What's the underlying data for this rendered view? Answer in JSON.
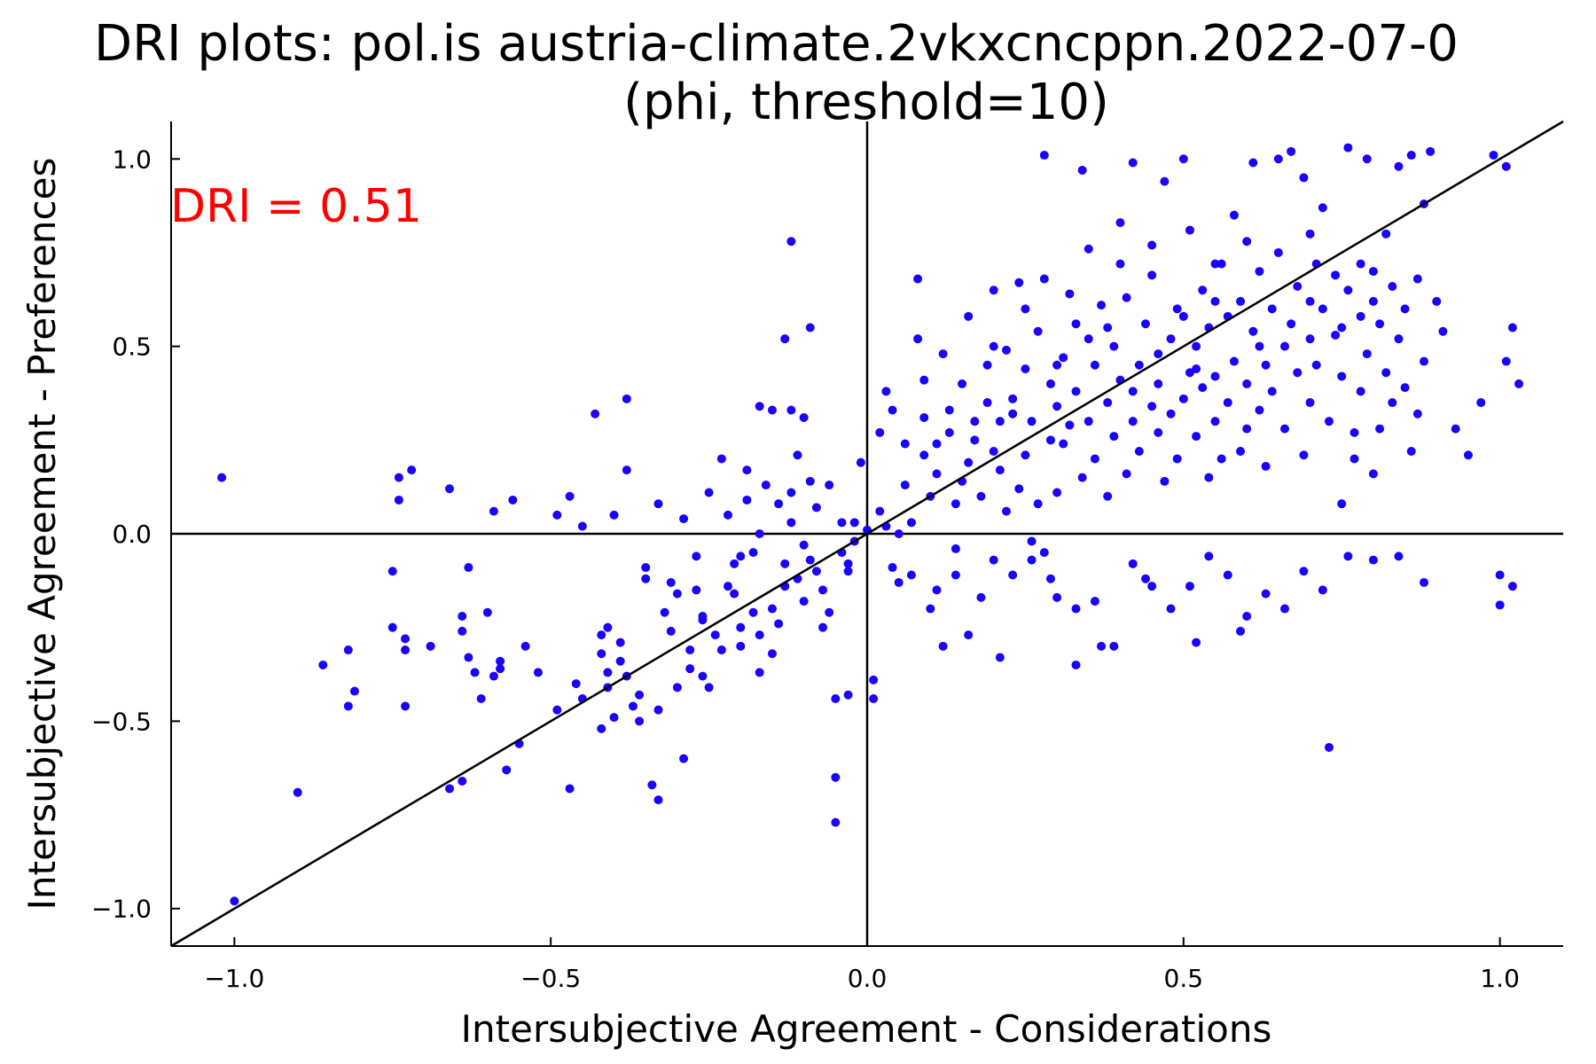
{
  "chart_data": {
    "type": "scatter",
    "title": "DRI plots: pol.is austria-climate.2vkxcncppn.2022-07-0",
    "subtitle": "(phi, threshold=10)",
    "xlabel": "Intersubjective Agreement - Considerations",
    "ylabel": "Intersubjective Agreement - Preferences",
    "xlim": [
      -1.1,
      1.1
    ],
    "ylim": [
      -1.1,
      1.1
    ],
    "xticks": [
      -1.0,
      -0.5,
      0.0,
      0.5,
      1.0
    ],
    "yticks": [
      -1.0,
      -0.5,
      0.0,
      0.5,
      1.0
    ],
    "xtick_labels": [
      "−1.0",
      "−0.5",
      "0.0",
      "0.5",
      "1.0"
    ],
    "ytick_labels": [
      "−1.0",
      "−0.5",
      "0.0",
      "0.5",
      "1.0"
    ],
    "grid": false,
    "legend": "none",
    "reference_lines": [
      "y = x",
      "x = 0",
      "y = 0"
    ],
    "annotation": {
      "text": "DRI = 0.51",
      "color": "#ff0000",
      "position": "top-left"
    },
    "marker_color": "#1a00ff",
    "line_color": "#000000",
    "points": [
      [
        -1.02,
        0.15
      ],
      [
        -1.0,
        -0.98
      ],
      [
        -0.9,
        -0.69
      ],
      [
        -0.86,
        -0.35
      ],
      [
        -0.82,
        -0.31
      ],
      [
        -0.81,
        -0.42
      ],
      [
        -0.82,
        -0.46
      ],
      [
        -0.75,
        -0.1
      ],
      [
        -0.75,
        -0.25
      ],
      [
        -0.74,
        0.09
      ],
      [
        -0.74,
        0.15
      ],
      [
        -0.73,
        -0.28
      ],
      [
        -0.73,
        -0.31
      ],
      [
        -0.73,
        -0.46
      ],
      [
        -0.72,
        0.17
      ],
      [
        -0.69,
        -0.3
      ],
      [
        -0.66,
        -0.68
      ],
      [
        -0.66,
        0.12
      ],
      [
        -0.64,
        -0.66
      ],
      [
        -0.64,
        -0.22
      ],
      [
        -0.64,
        -0.26
      ],
      [
        -0.63,
        -0.09
      ],
      [
        -0.63,
        -0.33
      ],
      [
        -0.62,
        -0.37
      ],
      [
        -0.61,
        -0.44
      ],
      [
        -0.6,
        -0.21
      ],
      [
        -0.59,
        -0.38
      ],
      [
        -0.59,
        0.06
      ],
      [
        -0.58,
        -0.34
      ],
      [
        -0.58,
        -0.36
      ],
      [
        -0.57,
        -0.63
      ],
      [
        -0.56,
        0.09
      ],
      [
        -0.55,
        -0.56
      ],
      [
        -0.54,
        -0.3
      ],
      [
        -0.52,
        -0.37
      ],
      [
        -0.49,
        -0.47
      ],
      [
        -0.47,
        -0.68
      ],
      [
        -0.46,
        -0.4
      ],
      [
        -0.45,
        -0.44
      ],
      [
        -0.43,
        0.32
      ],
      [
        -0.42,
        -0.27
      ],
      [
        -0.42,
        -0.32
      ],
      [
        -0.41,
        -0.37
      ],
      [
        -0.41,
        -0.41
      ],
      [
        -0.41,
        -0.25
      ],
      [
        -0.4,
        -0.49
      ],
      [
        -0.39,
        -0.29
      ],
      [
        -0.39,
        -0.34
      ],
      [
        -0.38,
        -0.38
      ],
      [
        -0.38,
        0.36
      ],
      [
        -0.38,
        0.17
      ],
      [
        -0.37,
        -0.46
      ],
      [
        -0.36,
        -0.43
      ],
      [
        -0.35,
        -0.09
      ],
      [
        -0.35,
        -0.12
      ],
      [
        -0.34,
        -0.67
      ],
      [
        -0.33,
        -0.71
      ],
      [
        -0.33,
        -0.47
      ],
      [
        -0.32,
        -0.21
      ],
      [
        -0.31,
        -0.26
      ],
      [
        -0.31,
        -0.13
      ],
      [
        -0.3,
        -0.16
      ],
      [
        -0.29,
        -0.6
      ],
      [
        -0.28,
        -0.31
      ],
      [
        -0.28,
        -0.36
      ],
      [
        -0.27,
        -0.15
      ],
      [
        -0.27,
        -0.06
      ],
      [
        -0.26,
        -0.22
      ],
      [
        -0.26,
        -0.38
      ],
      [
        -0.25,
        -0.41
      ],
      [
        -0.24,
        -0.27
      ],
      [
        -0.23,
        -0.31
      ],
      [
        -0.22,
        0.05
      ],
      [
        -0.21,
        -0.08
      ],
      [
        -0.21,
        -0.16
      ],
      [
        -0.2,
        -0.25
      ],
      [
        -0.2,
        -0.3
      ],
      [
        -0.19,
        0.17
      ],
      [
        -0.19,
        0.09
      ],
      [
        -0.18,
        -0.05
      ],
      [
        -0.18,
        -0.21
      ],
      [
        -0.17,
        -0.37
      ],
      [
        -0.17,
        0.0
      ],
      [
        -0.16,
        0.13
      ],
      [
        -0.15,
        -0.2
      ],
      [
        -0.15,
        -0.32
      ],
      [
        -0.14,
        0.08
      ],
      [
        -0.13,
        -0.08
      ],
      [
        -0.13,
        -0.14
      ],
      [
        -0.12,
        0.78
      ],
      [
        -0.12,
        0.03
      ],
      [
        -0.11,
        -0.12
      ],
      [
        -0.11,
        0.21
      ],
      [
        -0.1,
        -0.03
      ],
      [
        -0.1,
        -0.18
      ],
      [
        -0.09,
        0.55
      ],
      [
        -0.09,
        -0.07
      ],
      [
        -0.08,
        0.07
      ],
      [
        -0.08,
        -0.1
      ],
      [
        -0.07,
        -0.15
      ],
      [
        -0.06,
        0.13
      ],
      [
        -0.06,
        -0.21
      ],
      [
        -0.05,
        -0.44
      ],
      [
        -0.05,
        -0.65
      ],
      [
        -0.05,
        -0.77
      ],
      [
        -0.04,
        -0.05
      ],
      [
        -0.04,
        0.03
      ],
      [
        -0.03,
        -0.08
      ],
      [
        -0.03,
        -0.43
      ],
      [
        -0.02,
        0.03
      ],
      [
        -0.02,
        -0.02
      ],
      [
        -0.01,
        0.19
      ],
      [
        0.0,
        0.01
      ],
      [
        0.01,
        -0.44
      ],
      [
        0.01,
        -0.39
      ],
      [
        0.02,
        0.06
      ],
      [
        0.02,
        0.27
      ],
      [
        0.03,
        0.38
      ],
      [
        0.03,
        0.02
      ],
      [
        0.04,
        -0.09
      ],
      [
        0.05,
        0.0
      ],
      [
        0.05,
        -0.13
      ],
      [
        0.06,
        0.13
      ],
      [
        0.07,
        0.03
      ],
      [
        0.08,
        0.52
      ],
      [
        0.08,
        0.68
      ],
      [
        0.09,
        0.21
      ],
      [
        0.09,
        0.41
      ],
      [
        0.1,
        -0.2
      ],
      [
        0.1,
        0.1
      ],
      [
        0.11,
        0.24
      ],
      [
        0.11,
        0.16
      ],
      [
        0.12,
        -0.3
      ],
      [
        0.12,
        0.48
      ],
      [
        0.13,
        0.27
      ],
      [
        0.13,
        0.33
      ],
      [
        0.14,
        0.08
      ],
      [
        0.14,
        -0.11
      ],
      [
        0.15,
        0.14
      ],
      [
        0.15,
        0.4
      ],
      [
        0.16,
        0.58
      ],
      [
        0.16,
        0.19
      ],
      [
        0.17,
        0.25
      ],
      [
        0.17,
        0.3
      ],
      [
        0.18,
        0.1
      ],
      [
        0.18,
        -0.17
      ],
      [
        0.19,
        0.35
      ],
      [
        0.19,
        0.45
      ],
      [
        0.2,
        0.22
      ],
      [
        0.2,
        0.65
      ],
      [
        0.21,
        0.17
      ],
      [
        0.21,
        0.3
      ],
      [
        0.22,
        0.06
      ],
      [
        0.22,
        0.49
      ],
      [
        0.23,
        0.32
      ],
      [
        0.23,
        0.36
      ],
      [
        0.24,
        0.67
      ],
      [
        0.24,
        0.12
      ],
      [
        0.25,
        0.21
      ],
      [
        0.25,
        0.44
      ],
      [
        0.26,
        -0.02
      ],
      [
        0.26,
        0.3
      ],
      [
        0.27,
        0.54
      ],
      [
        0.27,
        0.08
      ],
      [
        0.28,
        1.01
      ],
      [
        0.28,
        0.68
      ],
      [
        0.29,
        0.25
      ],
      [
        0.29,
        0.4
      ],
      [
        0.3,
        0.11
      ],
      [
        0.3,
        0.34
      ],
      [
        0.31,
        0.47
      ],
      [
        0.31,
        0.24
      ],
      [
        0.32,
        0.64
      ],
      [
        0.32,
        0.29
      ],
      [
        0.33,
        0.38
      ],
      [
        0.33,
        0.56
      ],
      [
        0.34,
        0.97
      ],
      [
        0.34,
        0.15
      ],
      [
        0.35,
        0.76
      ],
      [
        0.35,
        0.3
      ],
      [
        0.36,
        0.45
      ],
      [
        0.36,
        0.2
      ],
      [
        0.37,
        -0.3
      ],
      [
        0.37,
        0.61
      ],
      [
        0.38,
        0.35
      ],
      [
        0.38,
        0.1
      ],
      [
        0.39,
        0.26
      ],
      [
        0.39,
        0.5
      ],
      [
        0.4,
        0.83
      ],
      [
        0.4,
        0.41
      ],
      [
        0.41,
        0.16
      ],
      [
        0.41,
        0.63
      ],
      [
        0.42,
        0.99
      ],
      [
        0.42,
        0.3
      ],
      [
        0.43,
        0.45
      ],
      [
        0.43,
        0.22
      ],
      [
        0.44,
        0.56
      ],
      [
        0.44,
        -0.12
      ],
      [
        0.45,
        0.34
      ],
      [
        0.45,
        0.69
      ],
      [
        0.46,
        0.27
      ],
      [
        0.46,
        0.4
      ],
      [
        0.47,
        0.94
      ],
      [
        0.47,
        0.14
      ],
      [
        0.48,
        0.52
      ],
      [
        0.48,
        0.32
      ],
      [
        0.49,
        0.2
      ],
      [
        0.49,
        0.6
      ],
      [
        0.5,
        0.36
      ],
      [
        0.5,
        1.0
      ],
      [
        0.51,
        0.81
      ],
      [
        0.51,
        0.43
      ],
      [
        0.52,
        0.26
      ],
      [
        0.52,
        0.5
      ],
      [
        0.53,
        0.65
      ],
      [
        0.53,
        0.39
      ],
      [
        0.54,
        0.15
      ],
      [
        0.54,
        0.55
      ],
      [
        0.55,
        0.42
      ],
      [
        0.55,
        0.3
      ],
      [
        0.56,
        0.72
      ],
      [
        0.56,
        0.2
      ],
      [
        0.57,
        0.58
      ],
      [
        0.57,
        0.35
      ],
      [
        0.58,
        0.85
      ],
      [
        0.58,
        0.46
      ],
      [
        0.59,
        0.22
      ],
      [
        0.59,
        0.62
      ],
      [
        0.6,
        0.4
      ],
      [
        0.6,
        0.28
      ],
      [
        0.61,
        0.54
      ],
      [
        0.61,
        0.99
      ],
      [
        0.62,
        0.33
      ],
      [
        0.62,
        0.7
      ],
      [
        0.63,
        0.45
      ],
      [
        0.63,
        0.18
      ],
      [
        0.64,
        0.6
      ],
      [
        0.64,
        0.38
      ],
      [
        0.65,
        1.0
      ],
      [
        0.65,
        0.75
      ],
      [
        0.66,
        0.5
      ],
      [
        0.66,
        0.28
      ],
      [
        0.67,
        1.02
      ],
      [
        0.67,
        0.56
      ],
      [
        0.68,
        0.43
      ],
      [
        0.68,
        0.66
      ],
      [
        0.69,
        0.21
      ],
      [
        0.69,
        0.95
      ],
      [
        0.7,
        0.52
      ],
      [
        0.7,
        0.35
      ],
      [
        0.71,
        0.72
      ],
      [
        0.71,
        0.45
      ],
      [
        0.72,
        0.87
      ],
      [
        0.72,
        0.6
      ],
      [
        0.73,
        -0.57
      ],
      [
        0.73,
        0.3
      ],
      [
        0.74,
        0.69
      ],
      [
        0.74,
        0.53
      ],
      [
        0.75,
        0.42
      ],
      [
        0.75,
        0.08
      ],
      [
        0.76,
        1.03
      ],
      [
        0.76,
        0.65
      ],
      [
        0.77,
        0.27
      ],
      [
        0.77,
        0.2
      ],
      [
        0.78,
        0.58
      ],
      [
        0.78,
        0.38
      ],
      [
        0.79,
        1.0
      ],
      [
        0.79,
        0.48
      ],
      [
        0.8,
        0.7
      ],
      [
        0.8,
        0.16
      ],
      [
        0.81,
        0.56
      ],
      [
        0.81,
        0.28
      ],
      [
        0.82,
        0.8
      ],
      [
        0.82,
        0.43
      ],
      [
        0.83,
        0.66
      ],
      [
        0.83,
        0.35
      ],
      [
        0.84,
        0.98
      ],
      [
        0.84,
        0.52
      ],
      [
        0.85,
        0.6
      ],
      [
        0.85,
        0.39
      ],
      [
        0.86,
        1.01
      ],
      [
        0.86,
        0.22
      ],
      [
        0.87,
        0.68
      ],
      [
        0.87,
        0.32
      ],
      [
        0.88,
        0.88
      ],
      [
        0.88,
        0.46
      ],
      [
        0.89,
        1.02
      ],
      [
        0.9,
        0.62
      ],
      [
        0.91,
        0.54
      ],
      [
        0.93,
        0.28
      ],
      [
        0.95,
        0.21
      ],
      [
        0.97,
        0.35
      ],
      [
        0.99,
        1.01
      ],
      [
        1.0,
        -0.11
      ],
      [
        1.0,
        -0.19
      ],
      [
        1.01,
        0.46
      ],
      [
        1.01,
        0.98
      ],
      [
        1.02,
        0.55
      ],
      [
        1.02,
        -0.14
      ],
      [
        1.03,
        0.4
      ],
      [
        0.2,
        -0.07
      ],
      [
        0.23,
        -0.11
      ],
      [
        0.26,
        -0.07
      ],
      [
        0.29,
        -0.12
      ],
      [
        0.33,
        -0.2
      ],
      [
        0.36,
        -0.18
      ],
      [
        0.39,
        -0.3
      ],
      [
        0.42,
        -0.08
      ],
      [
        0.45,
        -0.14
      ],
      [
        0.48,
        -0.2
      ],
      [
        0.51,
        -0.14
      ],
      [
        0.54,
        -0.06
      ],
      [
        0.57,
        -0.11
      ],
      [
        0.6,
        -0.22
      ],
      [
        0.63,
        -0.16
      ],
      [
        0.66,
        -0.2
      ],
      [
        0.69,
        -0.1
      ],
      [
        0.72,
        -0.15
      ],
      [
        0.76,
        -0.06
      ],
      [
        0.8,
        -0.07
      ],
      [
        0.84,
        -0.06
      ],
      [
        0.88,
        -0.13
      ],
      [
        0.52,
        -0.29
      ],
      [
        0.59,
        -0.26
      ],
      [
        0.3,
        -0.17
      ],
      [
        0.16,
        -0.27
      ],
      [
        0.21,
        -0.33
      ],
      [
        0.11,
        -0.15
      ],
      [
        0.07,
        -0.11
      ],
      [
        0.14,
        -0.04
      ],
      [
        0.28,
        -0.05
      ],
      [
        0.33,
        -0.35
      ],
      [
        -0.49,
        0.05
      ],
      [
        -0.45,
        0.02
      ],
      [
        -0.4,
        0.05
      ],
      [
        -0.33,
        0.08
      ],
      [
        -0.29,
        0.04
      ],
      [
        -0.25,
        0.11
      ],
      [
        -0.23,
        0.2
      ],
      [
        -0.2,
        -0.06
      ],
      [
        -0.15,
        0.33
      ],
      [
        -0.12,
        0.11
      ],
      [
        -0.09,
        0.14
      ],
      [
        -0.07,
        -0.25
      ],
      [
        -0.03,
        -0.1
      ],
      [
        0.04,
        0.33
      ],
      [
        0.06,
        0.24
      ],
      [
        0.09,
        0.31
      ],
      [
        -0.47,
        0.1
      ],
      [
        -0.42,
        -0.52
      ],
      [
        -0.36,
        -0.5
      ],
      [
        -0.3,
        -0.41
      ],
      [
        -0.26,
        -0.23
      ],
      [
        -0.22,
        -0.14
      ],
      [
        -0.17,
        -0.27
      ],
      [
        -0.14,
        -0.24
      ],
      [
        -0.13,
        0.52
      ],
      [
        -0.17,
        0.34
      ],
      [
        -0.12,
        0.33
      ],
      [
        -0.1,
        0.31
      ],
      [
        0.2,
        0.5
      ],
      [
        0.25,
        0.6
      ],
      [
        0.4,
        0.72
      ],
      [
        0.45,
        0.77
      ],
      [
        0.55,
        0.72
      ],
      [
        0.6,
        0.78
      ],
      [
        0.7,
        0.8
      ],
      [
        0.78,
        0.72
      ],
      [
        0.3,
        0.45
      ],
      [
        0.35,
        0.52
      ],
      [
        0.5,
        0.58
      ],
      [
        0.55,
        0.62
      ],
      [
        0.62,
        0.5
      ],
      [
        0.7,
        0.62
      ],
      [
        0.75,
        0.55
      ],
      [
        0.8,
        0.62
      ],
      [
        0.38,
        0.55
      ],
      [
        0.42,
        0.38
      ],
      [
        0.46,
        0.48
      ],
      [
        0.52,
        0.44
      ]
    ]
  }
}
